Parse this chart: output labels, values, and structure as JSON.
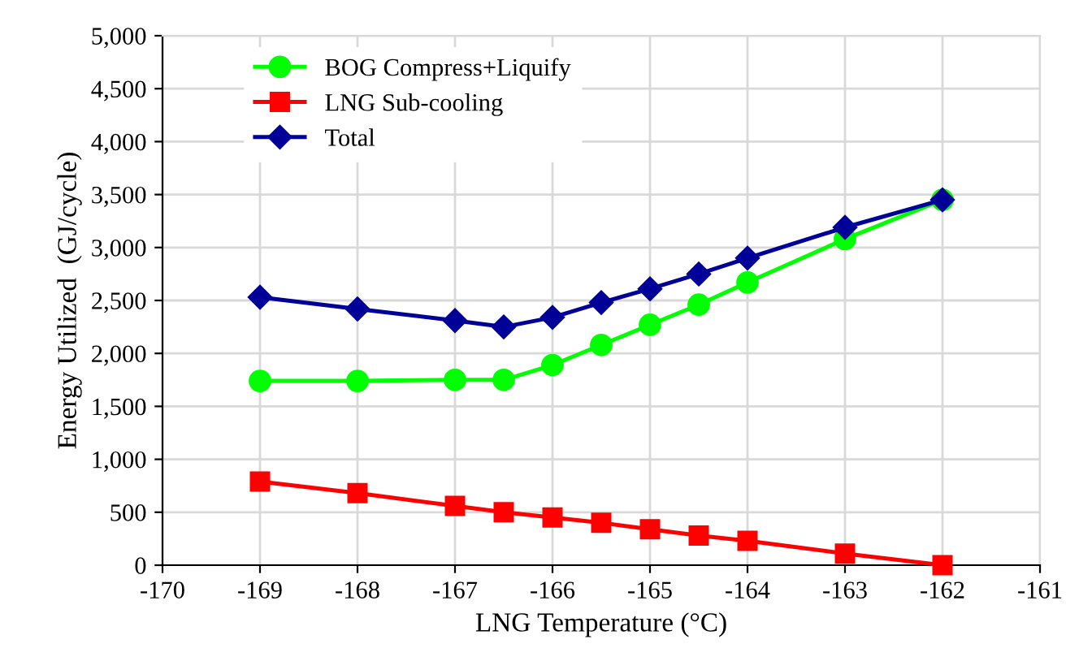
{
  "chart_data": {
    "type": "line",
    "xlabel": "LNG Temperature (°C)",
    "ylabel": "Energy Utilized  (GJ/cycle)",
    "x": [
      -169,
      -168,
      -167,
      -166.5,
      -166,
      -165.5,
      -165,
      -164.5,
      -164,
      -163,
      -162
    ],
    "series": [
      {
        "name": "BOG Compress+Liquify",
        "color": "#00ff00",
        "marker": "circle",
        "values": [
          1740,
          1740,
          1750,
          1750,
          1890,
          2080,
          2270,
          2460,
          2670,
          3080,
          3450
        ]
      },
      {
        "name": "LNG Sub-cooling",
        "color": "#ff0000",
        "marker": "square",
        "values": [
          790,
          680,
          560,
          500,
          450,
          400,
          340,
          280,
          230,
          110,
          0
        ]
      },
      {
        "name": "Total",
        "color": "#000099",
        "marker": "diamond",
        "values": [
          2530,
          2420,
          2310,
          2250,
          2340,
          2480,
          2610,
          2750,
          2900,
          3190,
          3450
        ]
      }
    ],
    "xlim": [
      -170,
      -161
    ],
    "xticks": [
      -170,
      -169,
      -168,
      -167,
      -166,
      -165,
      -164,
      -163,
      -162,
      -161
    ],
    "ylim": [
      0,
      5000
    ],
    "yticks": [
      {
        "value": 0,
        "label": "0"
      },
      {
        "value": 500,
        "label": "500"
      },
      {
        "value": 1000,
        "label": "1,000"
      },
      {
        "value": 1500,
        "label": "1,500"
      },
      {
        "value": 2000,
        "label": "2,000"
      },
      {
        "value": 2500,
        "label": "2,500"
      },
      {
        "value": 3000,
        "label": "3,000"
      },
      {
        "value": 3500,
        "label": "3,500"
      },
      {
        "value": 4000,
        "label": "4,000"
      },
      {
        "value": 4500,
        "label": "4,500"
      },
      {
        "value": 5000,
        "label": "5,000"
      }
    ],
    "grid": true,
    "legend": "top left",
    "line_style": "solid"
  }
}
